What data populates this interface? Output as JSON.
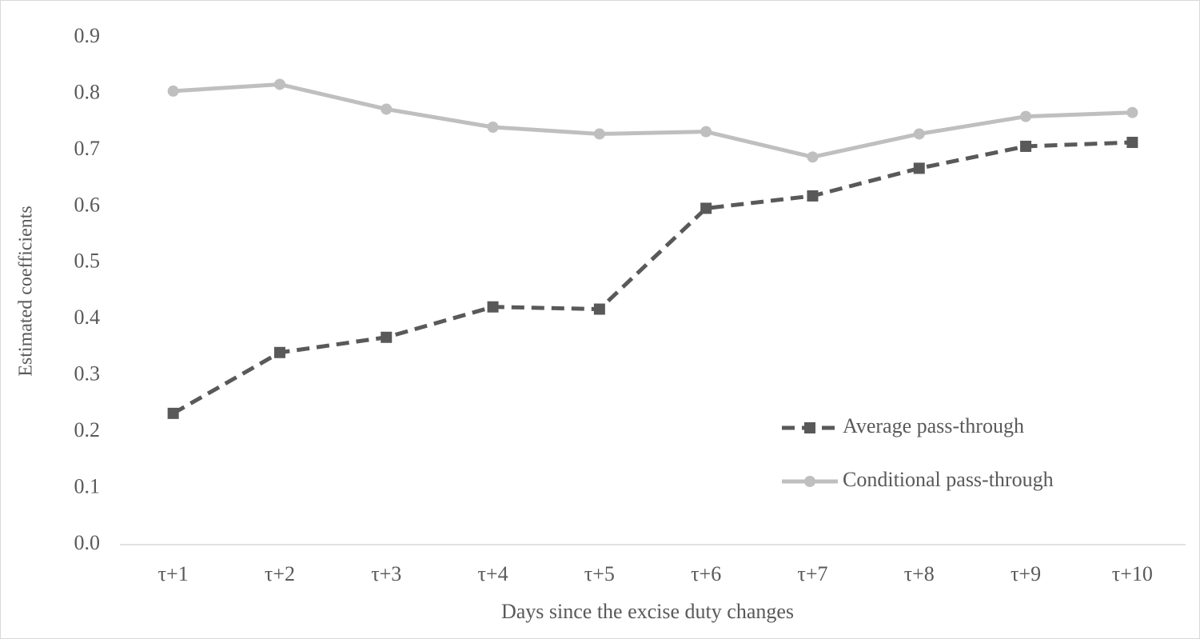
{
  "chart_data": {
    "type": "line",
    "xlabel": "Days since the excise duty changes",
    "ylabel": "Estimated coefficients",
    "categories": [
      "τ+1",
      "τ+2",
      "τ+3",
      "τ+4",
      "τ+5",
      "τ+6",
      "τ+7",
      "τ+8",
      "τ+9",
      "τ+10"
    ],
    "series": [
      {
        "name": "Average pass-through",
        "color": "#595959",
        "dashed": true,
        "marker": "square",
        "values": [
          0.233,
          0.341,
          0.368,
          0.422,
          0.418,
          0.597,
          0.619,
          0.668,
          0.707,
          0.714
        ]
      },
      {
        "name": "Conditional pass-through",
        "color": "#bfbfbf",
        "dashed": false,
        "marker": "circle",
        "values": [
          0.805,
          0.817,
          0.773,
          0.741,
          0.729,
          0.733,
          0.688,
          0.729,
          0.76,
          0.767
        ]
      }
    ],
    "ylim": [
      0,
      0.9
    ],
    "yticks": [
      {
        "value": 0,
        "label": "0.0"
      },
      0.1,
      0.2,
      0.3,
      0.4,
      0.5,
      0.6,
      0.7,
      0.8,
      0.9
    ],
    "legend": "lower right",
    "grid": false
  }
}
